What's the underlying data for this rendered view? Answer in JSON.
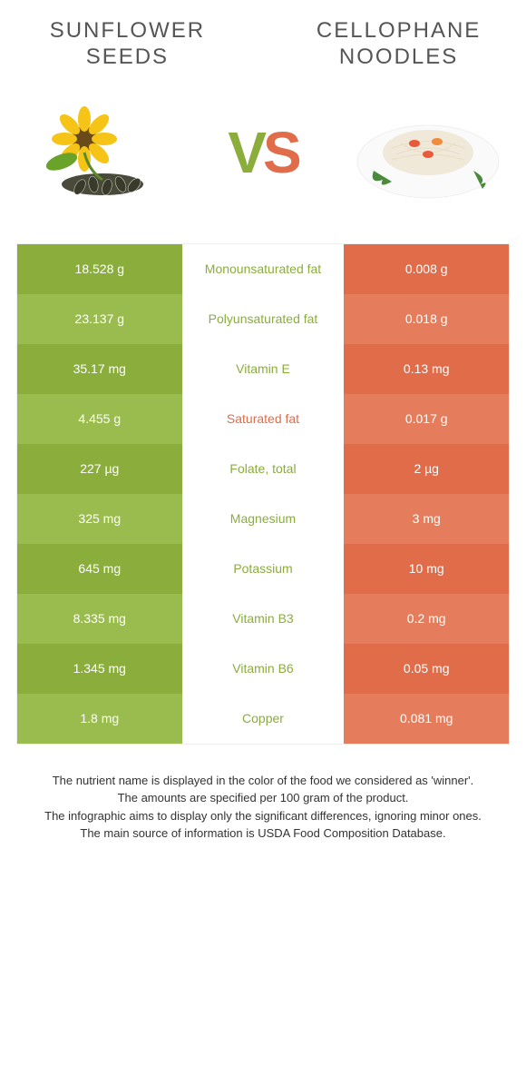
{
  "foods": {
    "left": {
      "name": "Sunflower seeds",
      "color": "#8aad3b"
    },
    "right": {
      "name": "Cellophane noodles",
      "color": "#e06c4a"
    }
  },
  "vs": {
    "v": "V",
    "s": "S"
  },
  "rows": [
    {
      "left": "18.528 g",
      "label": "Monounsaturated fat",
      "right": "0.008 g",
      "winner": "left"
    },
    {
      "left": "23.137 g",
      "label": "Polyunsaturated fat",
      "right": "0.018 g",
      "winner": "left"
    },
    {
      "left": "35.17 mg",
      "label": "Vitamin E",
      "right": "0.13 mg",
      "winner": "left"
    },
    {
      "left": "4.455 g",
      "label": "Saturated fat",
      "right": "0.017 g",
      "winner": "right"
    },
    {
      "left": "227 µg",
      "label": "Folate, total",
      "right": "2 µg",
      "winner": "left"
    },
    {
      "left": "325 mg",
      "label": "Magnesium",
      "right": "3 mg",
      "winner": "left"
    },
    {
      "left": "645 mg",
      "label": "Potassium",
      "right": "10 mg",
      "winner": "left"
    },
    {
      "left": "8.335 mg",
      "label": "Vitamin B3",
      "right": "0.2 mg",
      "winner": "left"
    },
    {
      "left": "1.345 mg",
      "label": "Vitamin B6",
      "right": "0.05 mg",
      "winner": "left"
    },
    {
      "left": "1.8 mg",
      "label": "Copper",
      "right": "0.081 mg",
      "winner": "left"
    }
  ],
  "footer": {
    "line1": "The nutrient name is displayed in the color of the food we considered as 'winner'.",
    "line2": "The amounts are specified per 100 gram of the product.",
    "line3": "The infographic aims to display only the significant differences, ignoring minor ones.",
    "line4": "The main source of information is USDA Food Composition Database."
  },
  "colors": {
    "green_dark": "#8aad3b",
    "green_light": "#9abb4e",
    "orange_dark": "#e06c4a",
    "orange_light": "#e57d5d"
  }
}
